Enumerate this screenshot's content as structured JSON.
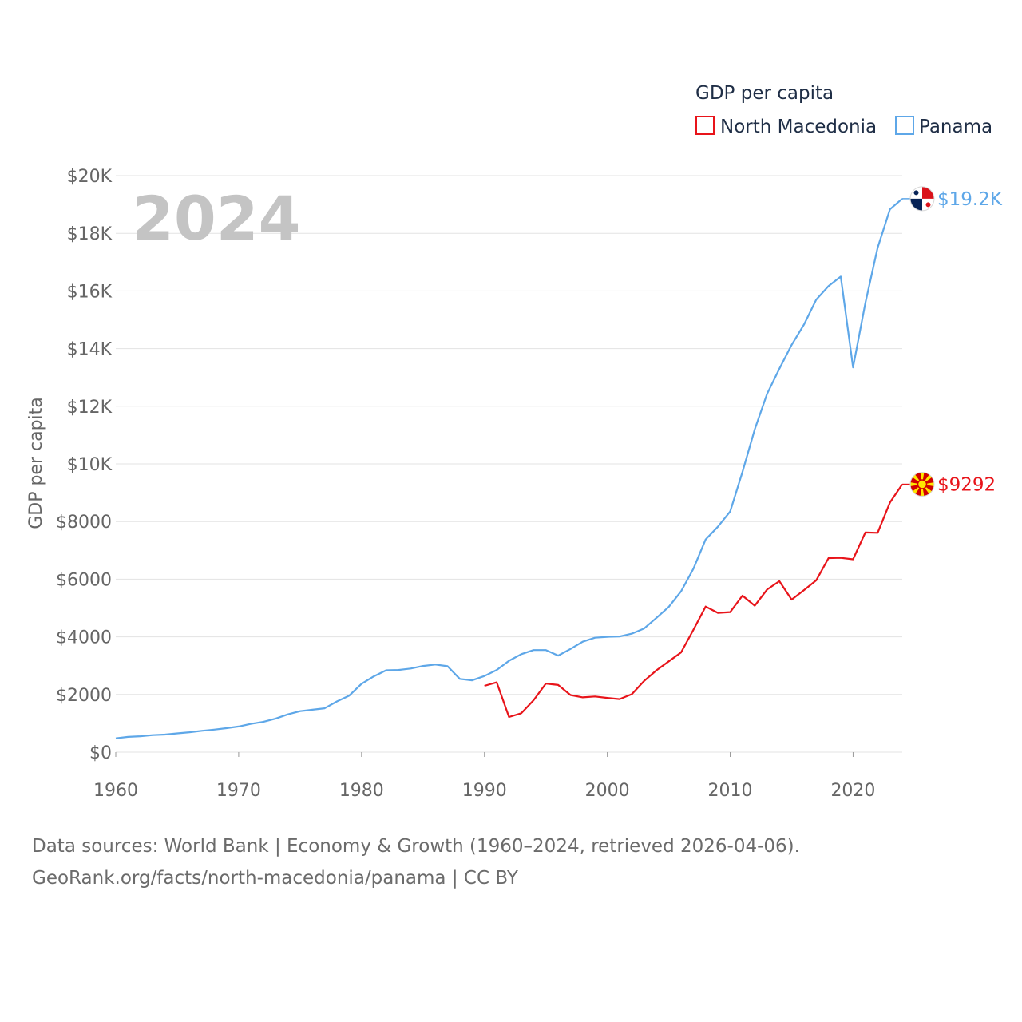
{
  "chart_data": {
    "type": "line",
    "title": "GDP per capita",
    "ylabel": "GDP per capita",
    "xlabel": "",
    "year_label": "2024",
    "xlim": [
      1960,
      2024
    ],
    "ylim": [
      0,
      20000
    ],
    "y_ticks": [
      {
        "value": 0,
        "label": "$0"
      },
      {
        "value": 2000,
        "label": "$2000"
      },
      {
        "value": 4000,
        "label": "$4000"
      },
      {
        "value": 6000,
        "label": "$6000"
      },
      {
        "value": 8000,
        "label": "$8000"
      },
      {
        "value": 10000,
        "label": "$10K"
      },
      {
        "value": 12000,
        "label": "$12K"
      },
      {
        "value": 14000,
        "label": "$14K"
      },
      {
        "value": 16000,
        "label": "$16K"
      },
      {
        "value": 18000,
        "label": "$18K"
      },
      {
        "value": 20000,
        "label": "$20K"
      }
    ],
    "x_ticks": [
      {
        "value": 1960,
        "label": "1960"
      },
      {
        "value": 1970,
        "label": "1970"
      },
      {
        "value": 1980,
        "label": "1980"
      },
      {
        "value": 1990,
        "label": "1990"
      },
      {
        "value": 2000,
        "label": "2000"
      },
      {
        "value": 2010,
        "label": "2010"
      },
      {
        "value": 2020,
        "label": "2020"
      }
    ],
    "grid": true,
    "legend_position": "top-right",
    "series": [
      {
        "name": "North Macedonia",
        "color": "#e8141a",
        "end_label": "$9292",
        "flag_icon": "north-macedonia-flag-icon",
        "x": [
          1990,
          1991,
          1992,
          1993,
          1994,
          1995,
          1996,
          1997,
          1998,
          1999,
          2000,
          2001,
          2002,
          2003,
          2004,
          2005,
          2006,
          2007,
          2008,
          2009,
          2010,
          2011,
          2012,
          2013,
          2014,
          2015,
          2016,
          2017,
          2018,
          2019,
          2020,
          2021,
          2022,
          2023,
          2024
        ],
        "values": [
          2300,
          2420,
          1220,
          1350,
          1800,
          2380,
          2330,
          1980,
          1900,
          1930,
          1880,
          1840,
          2010,
          2470,
          2840,
          3150,
          3460,
          4240,
          5050,
          4830,
          4860,
          5430,
          5080,
          5640,
          5930,
          5290,
          5620,
          5960,
          6730,
          6740,
          6690,
          7620,
          7610,
          8660,
          9292
        ]
      },
      {
        "name": "Panama",
        "color": "#5ea7e8",
        "end_label": "$19.2K",
        "flag_icon": "panama-flag-icon",
        "x": [
          1960,
          1961,
          1962,
          1963,
          1964,
          1965,
          1966,
          1967,
          1968,
          1969,
          1970,
          1971,
          1972,
          1973,
          1974,
          1975,
          1976,
          1977,
          1978,
          1979,
          1980,
          1981,
          1982,
          1983,
          1984,
          1985,
          1986,
          1987,
          1988,
          1989,
          1990,
          1991,
          1992,
          1993,
          1994,
          1995,
          1996,
          1997,
          1998,
          1999,
          2000,
          2001,
          2002,
          2003,
          2004,
          2005,
          2006,
          2007,
          2008,
          2009,
          2010,
          2011,
          2012,
          2013,
          2014,
          2015,
          2016,
          2017,
          2018,
          2019,
          2020,
          2021,
          2022,
          2023,
          2024
        ],
        "values": [
          480,
          530,
          550,
          590,
          610,
          650,
          690,
          740,
          780,
          830,
          890,
          980,
          1050,
          1160,
          1310,
          1420,
          1470,
          1520,
          1760,
          1960,
          2370,
          2630,
          2840,
          2850,
          2900,
          2990,
          3040,
          2980,
          2540,
          2490,
          2640,
          2850,
          3170,
          3400,
          3540,
          3540,
          3350,
          3580,
          3830,
          3970,
          4000,
          4010,
          4110,
          4290,
          4660,
          5040,
          5580,
          6360,
          7380,
          7820,
          8350,
          9720,
          11200,
          12430,
          13300,
          14130,
          14830,
          15700,
          16170,
          16500,
          13350,
          15580,
          17500,
          18830,
          19200
        ]
      }
    ],
    "source_line_1": "Data sources: World Bank | Economy & Growth (1960–2024, retrieved 2026-04-06).",
    "source_line_2": "GeoRank.org/facts/north-macedonia/panama | CC BY"
  }
}
